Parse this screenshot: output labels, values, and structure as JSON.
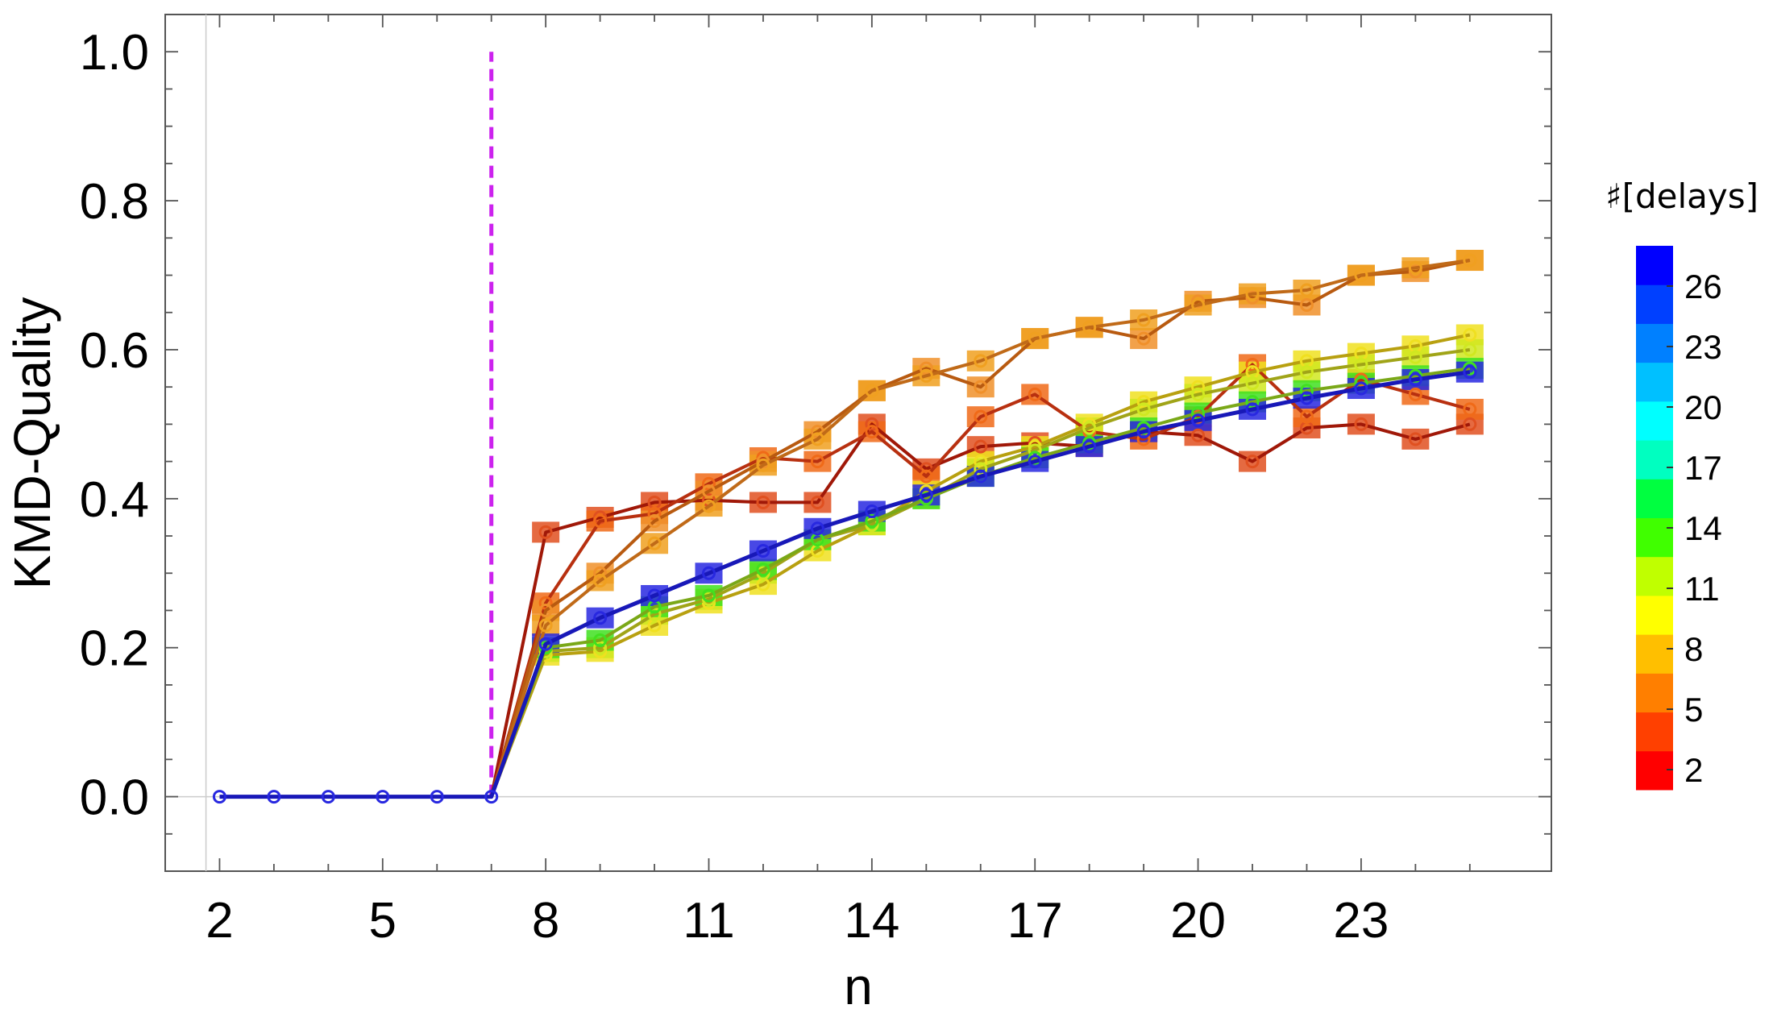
{
  "chart_data": {
    "type": "line",
    "xlabel": "n",
    "ylabel": "KMD-Quality",
    "xlim": [
      1,
      26.5
    ],
    "ylim": [
      -0.1,
      1.05
    ],
    "x_ticks": [
      2,
      5,
      8,
      11,
      14,
      17,
      20,
      23
    ],
    "y_ticks": [
      0.0,
      0.2,
      0.4,
      0.6,
      0.8,
      1.0
    ],
    "y_tick_labels": [
      "0.0",
      "0.2",
      "0.4",
      "0.6",
      "0.8",
      "1.0"
    ],
    "grid": false,
    "zero_line": true,
    "threshold_line": {
      "x": 7,
      "y_from": 0.0,
      "y_to": 1.0,
      "color": "#cc22ee",
      "style": "dashed"
    },
    "x": [
      2,
      3,
      4,
      5,
      6,
      7,
      8,
      9,
      10,
      11,
      12,
      13,
      14,
      15,
      16,
      17,
      18,
      19,
      20,
      21,
      22,
      23,
      24,
      25
    ],
    "series": [
      {
        "delays": 1,
        "line_color": "#a01808",
        "marker_color": "#e05020",
        "values": [
          0,
          0,
          0,
          0,
          0,
          0,
          0.355,
          0.375,
          0.395,
          0.398,
          0.395,
          0.395,
          0.5,
          0.44,
          0.47,
          0.475,
          0.47,
          0.49,
          0.485,
          0.45,
          0.495,
          0.5,
          0.48,
          0.5
        ]
      },
      {
        "delays": 2,
        "line_color": "#b83010",
        "marker_color": "#f06a18",
        "values": [
          0,
          0,
          0,
          0,
          0,
          0,
          0.26,
          0.37,
          0.38,
          0.42,
          0.455,
          0.45,
          0.49,
          0.43,
          0.51,
          0.54,
          0.49,
          0.48,
          0.51,
          0.58,
          0.51,
          0.56,
          0.54,
          0.52
        ]
      },
      {
        "delays": 3,
        "line_color": "#b85a10",
        "marker_color": "#f0902a",
        "values": [
          0,
          0,
          0,
          0,
          0,
          0,
          0.25,
          0.3,
          0.37,
          0.41,
          0.45,
          0.49,
          0.545,
          0.575,
          0.55,
          0.615,
          0.63,
          0.615,
          0.665,
          0.67,
          0.66,
          0.7,
          0.705,
          0.72
        ]
      },
      {
        "delays": 4,
        "line_color": "#c06a18",
        "marker_color": "#f0a020",
        "values": [
          0,
          0,
          0,
          0,
          0,
          0,
          0.23,
          0.29,
          0.34,
          0.39,
          0.445,
          0.48,
          0.545,
          0.565,
          0.585,
          0.615,
          0.63,
          0.64,
          0.66,
          0.675,
          0.68,
          0.7,
          0.71,
          0.72
        ]
      },
      {
        "delays": 6,
        "line_color": "#b8a010",
        "marker_color": "#f0e020",
        "values": [
          0,
          0,
          0,
          0,
          0,
          0,
          0.19,
          0.195,
          0.23,
          0.26,
          0.285,
          0.33,
          0.365,
          0.41,
          0.45,
          0.47,
          0.5,
          0.53,
          0.55,
          0.57,
          0.585,
          0.595,
          0.605,
          0.62
        ]
      },
      {
        "delays": 9,
        "line_color": "#a0a418",
        "marker_color": "#d0e820",
        "values": [
          0,
          0,
          0,
          0,
          0,
          0,
          0.195,
          0.2,
          0.245,
          0.265,
          0.3,
          0.345,
          0.365,
          0.4,
          0.44,
          0.465,
          0.495,
          0.52,
          0.54,
          0.555,
          0.57,
          0.58,
          0.59,
          0.6
        ]
      },
      {
        "delays": 14,
        "line_color": "#7aa818",
        "marker_color": "#40e020",
        "values": [
          0,
          0,
          0,
          0,
          0,
          0,
          0.2,
          0.21,
          0.255,
          0.27,
          0.305,
          0.345,
          0.37,
          0.4,
          0.43,
          0.455,
          0.475,
          0.495,
          0.515,
          0.53,
          0.545,
          0.555,
          0.565,
          0.575
        ]
      },
      {
        "delays": 28,
        "line_color": "#1818b8",
        "marker_color": "#2828e0",
        "values": [
          0,
          0,
          0,
          0,
          0,
          0,
          0.205,
          0.24,
          0.27,
          0.3,
          0.33,
          0.36,
          0.383,
          0.405,
          0.43,
          0.45,
          0.47,
          0.49,
          0.505,
          0.52,
          0.535,
          0.548,
          0.56,
          0.57
        ]
      }
    ],
    "colorbar": {
      "title": "♯[delays]",
      "tick_labels": [
        "2",
        "5",
        "8",
        "11",
        "14",
        "17",
        "20",
        "23",
        "26"
      ],
      "tick_values": [
        2,
        5,
        8,
        11,
        14,
        17,
        20,
        23,
        26
      ],
      "min": 1,
      "max": 28,
      "colors": [
        "#ff0000",
        "#ff4000",
        "#ff7f00",
        "#ffbf00",
        "#ffff00",
        "#c0ff00",
        "#40ff00",
        "#00ff40",
        "#00ffc0",
        "#00ffff",
        "#00c0ff",
        "#0080ff",
        "#0040ff",
        "#0000ff"
      ]
    }
  }
}
